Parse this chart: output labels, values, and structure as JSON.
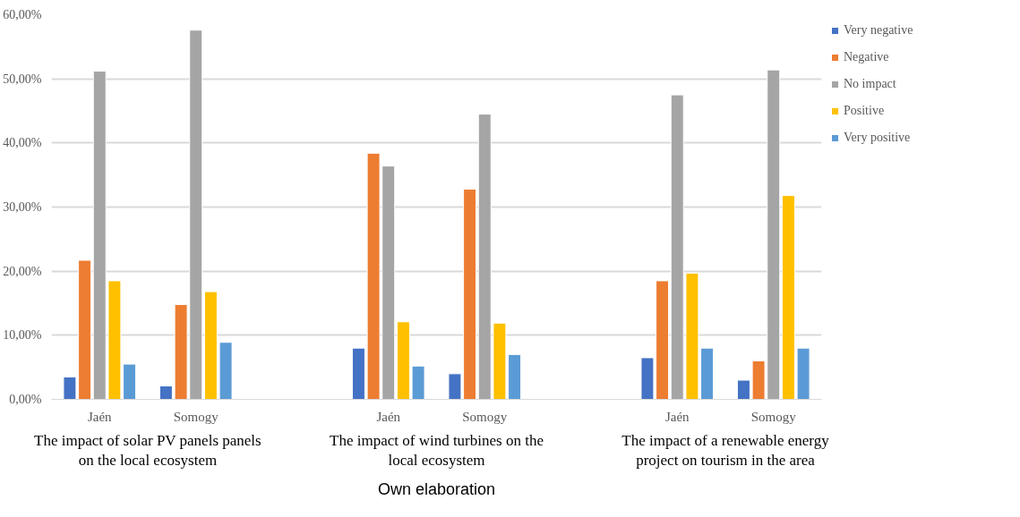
{
  "chart_data": {
    "type": "bar",
    "categories": [
      "Jaén",
      "Somogy",
      null,
      "Jaén",
      "Somogy",
      null,
      "Jaén",
      "Somogy"
    ],
    "series": [
      {
        "name": "Very negative",
        "color": "#4472c4",
        "values": [
          3.5,
          2.1,
          null,
          8.0,
          4.0,
          null,
          6.5,
          3.0
        ]
      },
      {
        "name": "Negative",
        "color": "#ed7d31",
        "values": [
          21.7,
          14.8,
          null,
          38.4,
          32.8,
          null,
          18.5,
          6.0
        ]
      },
      {
        "name": "No impact",
        "color": "#a5a5a5",
        "values": [
          51.2,
          57.6,
          null,
          36.4,
          44.5,
          null,
          47.5,
          51.4
        ]
      },
      {
        "name": "Positive",
        "color": "#ffc000",
        "values": [
          18.5,
          16.8,
          null,
          12.1,
          11.9,
          null,
          19.7,
          31.8
        ]
      },
      {
        "name": "Very positive",
        "color": "#5b9bd5",
        "values": [
          5.5,
          8.9,
          null,
          5.2,
          7.0,
          null,
          8.0,
          8.0
        ]
      }
    ],
    "ylim": [
      0,
      60
    ],
    "yticks": [
      {
        "value": 0,
        "label": "0,00%"
      },
      {
        "value": 10,
        "label": "10,00%"
      },
      {
        "value": 20,
        "label": "20,00%"
      },
      {
        "value": 30,
        "label": "30,00%"
      },
      {
        "value": 40,
        "label": "40,00%"
      },
      {
        "value": 50,
        "label": "50,00%"
      },
      {
        "value": 60,
        "label": "60,00%"
      }
    ],
    "grid": "y",
    "legend": "right",
    "annotations": [
      "The impact of solar PV panels panels on the local ecosystem",
      "The impact of wind turbines on the local ecosystem",
      "The impact of a renewable energy project on tourism in the area",
      "Own elaboration"
    ]
  }
}
